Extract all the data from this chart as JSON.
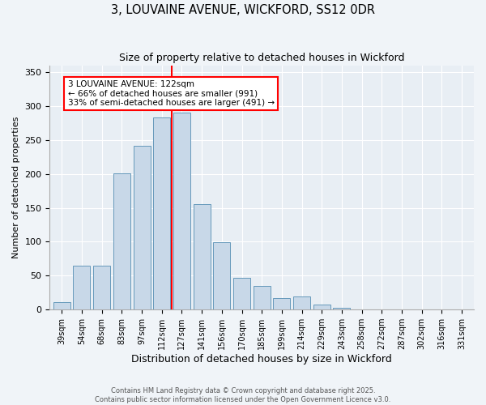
{
  "title_line1": "3, LOUVAINE AVENUE, WICKFORD, SS12 0DR",
  "title_line2": "Size of property relative to detached houses in Wickford",
  "xlabel": "Distribution of detached houses by size in Wickford",
  "ylabel": "Number of detached properties",
  "categories": [
    "39sqm",
    "54sqm",
    "68sqm",
    "83sqm",
    "97sqm",
    "112sqm",
    "127sqm",
    "141sqm",
    "156sqm",
    "170sqm",
    "185sqm",
    "199sqm",
    "214sqm",
    "229sqm",
    "243sqm",
    "258sqm",
    "272sqm",
    "287sqm",
    "302sqm",
    "316sqm",
    "331sqm"
  ],
  "values": [
    11,
    65,
    65,
    201,
    241,
    283,
    290,
    155,
    99,
    47,
    35,
    17,
    19,
    8,
    3,
    0,
    0,
    0,
    0,
    0,
    0
  ],
  "bar_color": "#c8d8e8",
  "bar_edge_color": "#6699bb",
  "vline_x": 6,
  "vline_color": "red",
  "annotation_text": "3 LOUVAINE AVENUE: 122sqm\n← 66% of detached houses are smaller (991)\n33% of semi-detached houses are larger (491) →",
  "annotation_box_color": "white",
  "annotation_box_edge": "red",
  "ylim": [
    0,
    360
  ],
  "yticks": [
    0,
    50,
    100,
    150,
    200,
    250,
    300,
    350
  ],
  "footer_line1": "Contains HM Land Registry data © Crown copyright and database right 2025.",
  "footer_line2": "Contains public sector information licensed under the Open Government Licence v3.0.",
  "bg_color": "#f0f4f8",
  "plot_bg_color": "#e8eef4",
  "fig_width": 6.0,
  "fig_height": 5.0,
  "fig_dpi": 100
}
